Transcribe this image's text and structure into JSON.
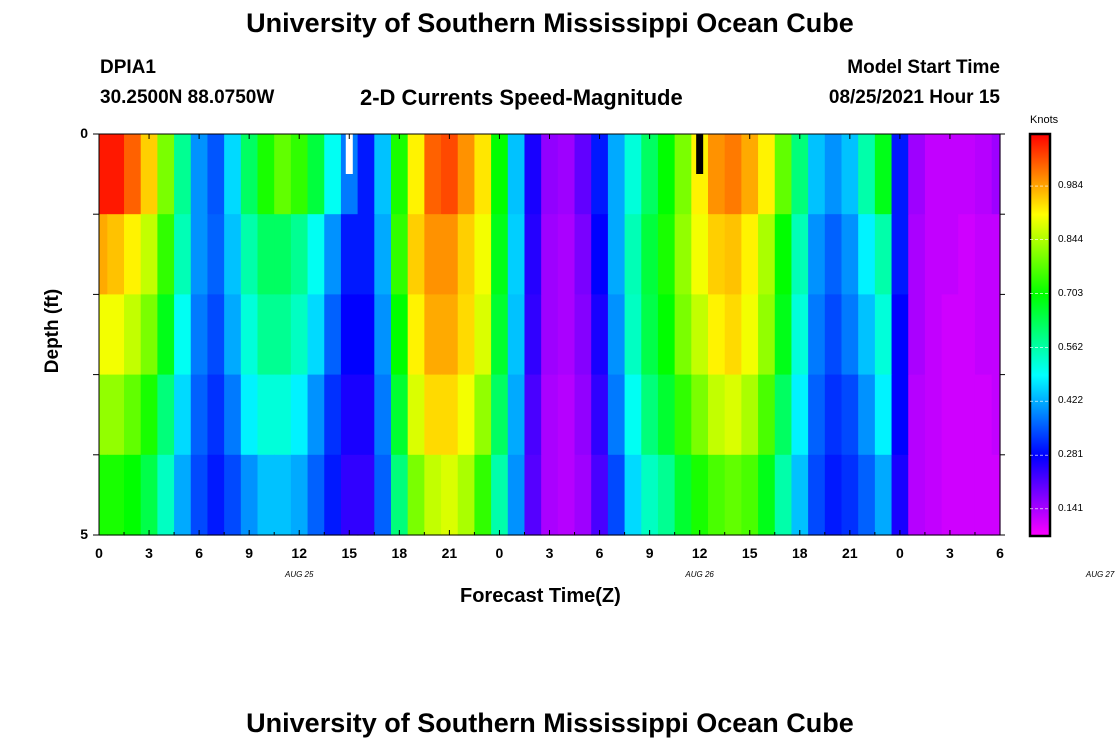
{
  "header": {
    "title_top": "University of Southern Mississippi Ocean Cube",
    "title_bottom": "University of Southern Mississippi Ocean Cube",
    "station": "DPIA1",
    "coords": "30.2500N  88.0750W",
    "center_title": "2-D Currents Speed-Magnitude",
    "model_label": "Model Start Time",
    "model_time": "08/25/2021 Hour 15"
  },
  "chart_data": {
    "type": "heatmap",
    "title": "2-D Currents Speed-Magnitude",
    "xlabel": "Forecast Time(Z)",
    "ylabel": "Depth (ft)",
    "x_tick_labels": [
      "0",
      "3",
      "6",
      "9",
      "12",
      "15",
      "18",
      "21",
      "0",
      "3",
      "6",
      "9",
      "12",
      "15",
      "18",
      "21",
      "0",
      "3",
      "6"
    ],
    "x_date_labels": [
      "AUG 25",
      "AUG 26",
      "AUG 27"
    ],
    "y_tick_labels": [
      "0",
      "5"
    ],
    "ylim": [
      0,
      5
    ],
    "hours": [
      0,
      1,
      2,
      3,
      4,
      5,
      6,
      7,
      8,
      9,
      10,
      11,
      12,
      13,
      14,
      15,
      16,
      17,
      18,
      19,
      20,
      21,
      22,
      23,
      24,
      25,
      26,
      27,
      28,
      29,
      30,
      31,
      32,
      33,
      34,
      35,
      36,
      37,
      38,
      39,
      40,
      41,
      42,
      43,
      44,
      45,
      46,
      47,
      48,
      49,
      50,
      51,
      52,
      53,
      54
    ],
    "depth_rows_ft": [
      0,
      1,
      2,
      3,
      4,
      5
    ],
    "colorbar": {
      "unit": "Knots",
      "ticks": [
        "0.984",
        "0.844",
        "0.703",
        "0.562",
        "0.422",
        "0.281",
        "0.141"
      ],
      "min": 0.07,
      "max": 1.12
    },
    "speed_knots": [
      [
        1.1,
        1.1,
        1.04,
        0.95,
        0.8,
        0.58,
        0.4,
        0.35,
        0.46,
        0.62,
        0.72,
        0.78,
        0.74,
        0.65,
        0.5,
        0.38,
        0.3,
        0.44,
        0.72,
        0.92,
        1.04,
        1.06,
        1.0,
        0.93,
        0.7,
        0.44,
        0.26,
        0.16,
        0.15,
        0.2,
        0.3,
        0.42,
        0.52,
        0.62,
        0.7,
        0.8,
        0.92,
        1.0,
        1.02,
        0.98,
        0.92,
        0.78,
        0.6,
        0.44,
        0.4,
        0.44,
        0.56,
        0.68,
        0.3,
        0.15,
        0.12,
        0.12,
        0.12,
        0.13,
        0.15
      ],
      [
        0.98,
        0.96,
        0.92,
        0.86,
        0.74,
        0.55,
        0.4,
        0.36,
        0.44,
        0.56,
        0.62,
        0.62,
        0.58,
        0.5,
        0.4,
        0.3,
        0.3,
        0.42,
        0.74,
        0.95,
        1.0,
        1.0,
        0.95,
        0.9,
        0.68,
        0.45,
        0.25,
        0.15,
        0.14,
        0.18,
        0.28,
        0.42,
        0.55,
        0.65,
        0.72,
        0.82,
        0.9,
        0.95,
        0.96,
        0.92,
        0.84,
        0.7,
        0.55,
        0.4,
        0.36,
        0.4,
        0.48,
        0.56,
        0.3,
        0.14,
        0.12,
        0.12,
        0.11,
        0.12,
        0.12
      ],
      [
        0.9,
        0.9,
        0.86,
        0.8,
        0.68,
        0.5,
        0.38,
        0.34,
        0.42,
        0.52,
        0.58,
        0.58,
        0.54,
        0.46,
        0.36,
        0.28,
        0.28,
        0.4,
        0.7,
        0.92,
        0.98,
        0.98,
        0.94,
        0.88,
        0.66,
        0.44,
        0.24,
        0.15,
        0.14,
        0.17,
        0.26,
        0.4,
        0.54,
        0.64,
        0.7,
        0.8,
        0.86,
        0.92,
        0.94,
        0.9,
        0.82,
        0.68,
        0.52,
        0.38,
        0.34,
        0.38,
        0.44,
        0.52,
        0.28,
        0.14,
        0.12,
        0.11,
        0.11,
        0.12,
        0.12
      ],
      [
        0.82,
        0.82,
        0.78,
        0.72,
        0.6,
        0.46,
        0.36,
        0.32,
        0.38,
        0.48,
        0.52,
        0.52,
        0.48,
        0.4,
        0.32,
        0.26,
        0.26,
        0.38,
        0.66,
        0.88,
        0.94,
        0.94,
        0.9,
        0.82,
        0.62,
        0.42,
        0.22,
        0.14,
        0.13,
        0.16,
        0.24,
        0.38,
        0.5,
        0.6,
        0.66,
        0.74,
        0.8,
        0.86,
        0.88,
        0.84,
        0.76,
        0.62,
        0.48,
        0.36,
        0.32,
        0.34,
        0.4,
        0.48,
        0.28,
        0.13,
        0.12,
        0.11,
        0.11,
        0.11,
        0.12
      ],
      [
        0.72,
        0.72,
        0.7,
        0.64,
        0.54,
        0.42,
        0.34,
        0.3,
        0.34,
        0.4,
        0.44,
        0.44,
        0.42,
        0.36,
        0.3,
        0.24,
        0.24,
        0.36,
        0.6,
        0.8,
        0.86,
        0.88,
        0.84,
        0.74,
        0.56,
        0.4,
        0.21,
        0.14,
        0.13,
        0.15,
        0.22,
        0.34,
        0.46,
        0.54,
        0.58,
        0.66,
        0.72,
        0.76,
        0.78,
        0.76,
        0.68,
        0.56,
        0.44,
        0.34,
        0.3,
        0.32,
        0.36,
        0.42,
        0.26,
        0.13,
        0.12,
        0.11,
        0.11,
        0.11,
        0.11
      ]
    ]
  }
}
